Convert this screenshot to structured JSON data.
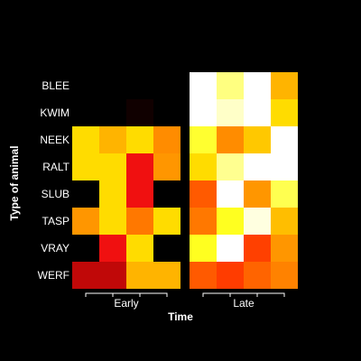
{
  "chart_data": {
    "type": "heatmap",
    "xlabel": "Time",
    "ylabel": "Type of animal",
    "rows": [
      "BLEE",
      "KWIM",
      "NEEK",
      "RALT",
      "SLUB",
      "TASP",
      "VRAY",
      "WERF"
    ],
    "column_groups": [
      {
        "label": "Early",
        "columns": 4
      },
      {
        "label": "Late",
        "columns": 4
      }
    ],
    "cells": [
      [
        "#000000",
        "#000000",
        "#000000",
        "#000000",
        "#ffffff",
        "#ffff80",
        "#ffffff",
        "#ffb400"
      ],
      [
        "#000000",
        "#000000",
        "#100000",
        "#000000",
        "#ffffff",
        "#ffffc8",
        "#ffffff",
        "#ffdc00"
      ],
      [
        "#ffdc00",
        "#ffb400",
        "#ffdc00",
        "#ff8c00",
        "#ffff30",
        "#ff8c00",
        "#ffc800",
        "#ffffff"
      ],
      [
        "#ffdc00",
        "#ffdc00",
        "#f01010",
        "#ff9600",
        "#ffdc00",
        "#ffff90",
        "#ffffff",
        "#ffffff"
      ],
      [
        "#000000",
        "#ffdc00",
        "#f01010",
        "#000000",
        "#ff5a00",
        "#ffffff",
        "#ff9600",
        "#ffff50"
      ],
      [
        "#ff9600",
        "#ffdc00",
        "#ff7800",
        "#ffdc00",
        "#ff7800",
        "#ffff20",
        "#ffffe0",
        "#ffbe00"
      ],
      [
        "#000000",
        "#f01010",
        "#ffdc00",
        "#000000",
        "#ffff20",
        "#ffffff",
        "#ff4000",
        "#ff9600"
      ],
      [
        "#c00808",
        "#c00808",
        "#ffb400",
        "#ffb400",
        "#ff5a00",
        "#ff3c00",
        "#ff6400",
        "#ff8200"
      ]
    ]
  }
}
